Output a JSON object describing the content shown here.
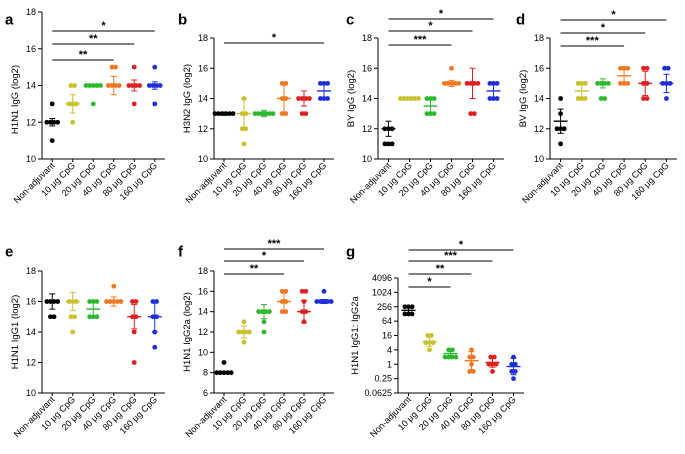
{
  "chart_data": [
    {
      "panel": "a",
      "type": "scatter",
      "ylabel": "H1N1 IgG (log2)",
      "yscale": "linear",
      "ylim": [
        10,
        18
      ],
      "yticks": [
        10,
        12,
        14,
        16,
        18
      ],
      "ytick_labels": [
        "10",
        "12",
        "14",
        "16",
        "18"
      ],
      "categories": [
        "Non-adjuvant",
        "10 μg CpG",
        "20 μg CpG",
        "40 μg CpG",
        "80 μg CpG",
        "160 μg CpG"
      ],
      "series": [
        {
          "name": "Non-adjuvant",
          "color": "#000000",
          "values": [
            12,
            12,
            12,
            12,
            11,
            13
          ],
          "mean": 12,
          "sd": 0.2
        },
        {
          "name": "10 μg CpG",
          "color": "#c9c12e",
          "values": [
            13,
            13,
            12,
            14,
            14,
            13
          ],
          "mean": 13,
          "sd": 0.5
        },
        {
          "name": "20 μg CpG",
          "color": "#2eb82e",
          "values": [
            14,
            14,
            14,
            14,
            13,
            14
          ],
          "mean": 14,
          "sd": 0.0
        },
        {
          "name": "40 μg CpG",
          "color": "#f07820",
          "values": [
            14,
            14,
            14,
            14,
            15,
            15
          ],
          "mean": 14,
          "sd": 0.5
        },
        {
          "name": "80 μg CpG",
          "color": "#e02020",
          "values": [
            14,
            14,
            15,
            14,
            14,
            13
          ],
          "mean": 14,
          "sd": 0.3
        },
        {
          "name": "160 μg CpG",
          "color": "#1f2fd8",
          "values": [
            14,
            14,
            14,
            14,
            15,
            13
          ],
          "mean": 14,
          "sd": 0.2
        }
      ],
      "significance": [
        {
          "from": 0,
          "to": 5,
          "label": "*"
        },
        {
          "from": 0,
          "to": 4,
          "label": "**"
        },
        {
          "from": 0,
          "to": 3,
          "label": "**"
        }
      ]
    },
    {
      "panel": "b",
      "type": "scatter",
      "ylabel": "H3N2 IgG (log2)",
      "yscale": "linear",
      "ylim": [
        10,
        18
      ],
      "yticks": [
        10,
        12,
        14,
        16,
        18
      ],
      "ytick_labels": [
        "10",
        "12",
        "14",
        "16",
        "18"
      ],
      "categories": [
        "Non-adjuvant",
        "10 μg CpG",
        "20 μg CpG",
        "40 μg CpG",
        "80 μg CpG",
        "160 μg CpG"
      ],
      "series": [
        {
          "name": "Non-adjuvant",
          "color": "#000000",
          "values": [
            13,
            13,
            13,
            13,
            13,
            13
          ],
          "mean": 13,
          "sd": 0.1
        },
        {
          "name": "10 μg CpG",
          "color": "#c9c12e",
          "values": [
            13,
            12,
            11,
            13,
            14,
            12
          ],
          "mean": 13,
          "sd": 1.0
        },
        {
          "name": "20 μg CpG",
          "color": "#2eb82e",
          "values": [
            13,
            13,
            13,
            13,
            13,
            13
          ],
          "mean": 13,
          "sd": 0.2
        },
        {
          "name": "40 μg CpG",
          "color": "#f07820",
          "values": [
            14,
            13,
            15,
            15,
            13,
            14
          ],
          "mean": 14,
          "sd": 1.0
        },
        {
          "name": "80 μg CpG",
          "color": "#e02020",
          "values": [
            14,
            14,
            13,
            14,
            13,
            14
          ],
          "mean": 14,
          "sd": 0.5
        },
        {
          "name": "160 μg CpG",
          "color": "#1f2fd8",
          "values": [
            14,
            15,
            15,
            14,
            15,
            14
          ],
          "mean": 14.5,
          "sd": 0.5
        }
      ],
      "significance": [
        {
          "from": 0,
          "to": 5,
          "label": "*"
        }
      ]
    },
    {
      "panel": "c",
      "type": "scatter",
      "ylabel": "BY IgG (log2)",
      "yscale": "linear",
      "ylim": [
        10,
        18
      ],
      "yticks": [
        10,
        12,
        14,
        16,
        18
      ],
      "ytick_labels": [
        "10",
        "12",
        "14",
        "16",
        "18"
      ],
      "categories": [
        "Non-adjuvant",
        "10 μg CpG",
        "20 μg CpG",
        "40 μg CpG",
        "80 μg CpG",
        "160 μg CpG"
      ],
      "series": [
        {
          "name": "Non-adjuvant",
          "color": "#000000",
          "values": [
            12,
            12,
            11,
            11,
            12,
            11
          ],
          "mean": 12,
          "sd": 0.5
        },
        {
          "name": "10 μg CpG",
          "color": "#c9c12e",
          "values": [
            14,
            14,
            14,
            14,
            14,
            14
          ],
          "mean": 14,
          "sd": 0.0
        },
        {
          "name": "20 μg CpG",
          "color": "#2eb82e",
          "values": [
            14,
            13,
            14,
            13,
            13,
            14
          ],
          "mean": 13.5,
          "sd": 0.5
        },
        {
          "name": "40 μg CpG",
          "color": "#f07820",
          "values": [
            16,
            15,
            15,
            15,
            15,
            15
          ],
          "mean": 15,
          "sd": 0.2
        },
        {
          "name": "80 μg CpG",
          "color": "#e02020",
          "values": [
            15,
            15,
            13,
            13,
            15,
            15
          ],
          "mean": 15,
          "sd": 1.0
        },
        {
          "name": "160 μg CpG",
          "color": "#1f2fd8",
          "values": [
            15,
            15,
            14,
            14,
            15,
            14
          ],
          "mean": 14.5,
          "sd": 0.5
        }
      ],
      "significance": [
        {
          "from": 0,
          "to": 5,
          "label": "*"
        },
        {
          "from": 0,
          "to": 4,
          "label": "*"
        },
        {
          "from": 0,
          "to": 3,
          "label": "***"
        }
      ]
    },
    {
      "panel": "d",
      "type": "scatter",
      "ylabel": "BV IgG (log2)",
      "yscale": "linear",
      "ylim": [
        10,
        18
      ],
      "yticks": [
        10,
        12,
        14,
        16,
        18
      ],
      "ytick_labels": [
        "10",
        "12",
        "14",
        "16",
        "18"
      ],
      "categories": [
        "Non-adjuvant",
        "10 μg CpG",
        "20 μg CpG",
        "40 μg CpG",
        "80 μg CpG",
        "160 μg CpG"
      ],
      "series": [
        {
          "name": "Non-adjuvant",
          "color": "#000000",
          "values": [
            14,
            13,
            12,
            12,
            11,
            12
          ],
          "mean": 12.5,
          "sd": 0.8
        },
        {
          "name": "10 μg CpG",
          "color": "#c9c12e",
          "values": [
            15,
            15,
            14,
            14,
            15,
            14
          ],
          "mean": 14.5,
          "sd": 0.5
        },
        {
          "name": "20 μg CpG",
          "color": "#2eb82e",
          "values": [
            15,
            15,
            15,
            15,
            14,
            14
          ],
          "mean": 15,
          "sd": 0.3
        },
        {
          "name": "40 μg CpG",
          "color": "#f07820",
          "values": [
            16,
            16,
            16,
            15,
            15,
            15
          ],
          "mean": 15.5,
          "sd": 0.5
        },
        {
          "name": "80 μg CpG",
          "color": "#e02020",
          "values": [
            16,
            16,
            15,
            15,
            14,
            14
          ],
          "mean": 15,
          "sd": 0.8
        },
        {
          "name": "160 μg CpG",
          "color": "#1f2fd8",
          "values": [
            16,
            16,
            15,
            15,
            15,
            14
          ],
          "mean": 15,
          "sd": 0.6
        }
      ],
      "significance": [
        {
          "from": 0,
          "to": 5,
          "label": "*"
        },
        {
          "from": 0,
          "to": 4,
          "label": "*"
        },
        {
          "from": 0,
          "to": 3,
          "label": "***"
        }
      ]
    },
    {
      "panel": "e",
      "type": "scatter",
      "ylabel": "H1N1 IgG1 (log2)",
      "yscale": "linear",
      "ylim": [
        10,
        18
      ],
      "yticks": [
        10,
        12,
        14,
        16,
        18
      ],
      "ytick_labels": [
        "10",
        "12",
        "14",
        "16",
        "18"
      ],
      "categories": [
        "Non-adjuvant",
        "10 μg CpG",
        "20 μg CpG",
        "40 μg CpG",
        "80 μg CpG",
        "160 μg CpG"
      ],
      "series": [
        {
          "name": "Non-adjuvant",
          "color": "#000000",
          "values": [
            16,
            16,
            16,
            16,
            15,
            15
          ],
          "mean": 16,
          "sd": 0.5
        },
        {
          "name": "10 μg CpG",
          "color": "#c9c12e",
          "values": [
            16,
            16,
            16,
            15,
            15,
            14
          ],
          "mean": 16,
          "sd": 0.6
        },
        {
          "name": "20 μg CpG",
          "color": "#2eb82e",
          "values": [
            16,
            16,
            16,
            15,
            15,
            15
          ],
          "mean": 15.5,
          "sd": 0.5
        },
        {
          "name": "40 μg CpG",
          "color": "#f07820",
          "values": [
            17,
            16,
            16,
            16,
            16,
            16
          ],
          "mean": 16,
          "sd": 0.3
        },
        {
          "name": "80 μg CpG",
          "color": "#e02020",
          "values": [
            16,
            16,
            15,
            15,
            14,
            12
          ],
          "mean": 15,
          "sd": 0.8
        },
        {
          "name": "160 μg CpG",
          "color": "#1f2fd8",
          "values": [
            16,
            16,
            15,
            15,
            14,
            13
          ],
          "mean": 15,
          "sd": 1.0
        }
      ],
      "significance": []
    },
    {
      "panel": "f",
      "type": "scatter",
      "ylabel": "H1N1 IgG2a (log2)",
      "yscale": "linear",
      "ylim": [
        6,
        18
      ],
      "yticks": [
        6,
        8,
        10,
        12,
        14,
        16,
        18
      ],
      "ytick_labels": [
        "6",
        "8",
        "10",
        "12",
        "14",
        "16",
        "18"
      ],
      "categories": [
        "Non-adjuvant",
        "10 μg CpG",
        "20 μg CpG",
        "40 μg CpG",
        "80 μg CpG",
        "160 μg CpG"
      ],
      "series": [
        {
          "name": "Non-adjuvant",
          "color": "#000000",
          "values": [
            9,
            8,
            8,
            8,
            8,
            8
          ],
          "mean": 8,
          "sd": 0.1
        },
        {
          "name": "10 μg CpG",
          "color": "#c9c12e",
          "values": [
            13,
            12,
            12,
            12,
            12,
            11
          ],
          "mean": 12,
          "sd": 0.6
        },
        {
          "name": "20 μg CpG",
          "color": "#2eb82e",
          "values": [
            14,
            14,
            14,
            14,
            13,
            12
          ],
          "mean": 14,
          "sd": 0.7
        },
        {
          "name": "40 μg CpG",
          "color": "#f07820",
          "values": [
            16,
            16,
            15,
            15,
            14,
            14
          ],
          "mean": 15,
          "sd": 0.9
        },
        {
          "name": "80 μg CpG",
          "color": "#e02020",
          "values": [
            16,
            16,
            15,
            14,
            14,
            13
          ],
          "mean": 14,
          "sd": 1.1
        },
        {
          "name": "160 μg CpG",
          "color": "#1f2fd8",
          "values": [
            16,
            15,
            15,
            15,
            15,
            15
          ],
          "mean": 15,
          "sd": 0.2
        }
      ],
      "significance": [
        {
          "from": 0,
          "to": 5,
          "label": "***"
        },
        {
          "from": 0,
          "to": 4,
          "label": "*"
        },
        {
          "from": 0,
          "to": 3,
          "label": "**"
        }
      ]
    },
    {
      "panel": "g",
      "type": "scatter",
      "ylabel": "H1N1 IgG1: IgG2a",
      "yscale": "log2",
      "ylim": [
        0.0625,
        4096
      ],
      "yticks": [
        0.0625,
        0.25,
        1,
        4,
        16,
        64,
        256,
        1024,
        4096
      ],
      "ytick_labels": [
        "0.0625",
        "0.25",
        "1",
        "4",
        "16",
        "64",
        "256",
        "1024",
        "4096"
      ],
      "categories": [
        "Non-adjuvant",
        "10 μg CpG",
        "20 μg CpG",
        "40 μg CpG",
        "80 μg CpG",
        "160 μg CpG"
      ],
      "series": [
        {
          "name": "Non-adjuvant",
          "color": "#000000",
          "values": [
            256,
            256,
            256,
            128,
            128,
            128
          ],
          "mean": 181,
          "sd_factor": 1.3
        },
        {
          "name": "10 μg CpG",
          "color": "#c9c12e",
          "values": [
            16,
            16,
            8,
            8,
            8,
            4
          ],
          "mean": 9,
          "sd_factor": 1.6
        },
        {
          "name": "20 μg CpG",
          "color": "#2eb82e",
          "values": [
            4,
            4,
            2,
            2,
            2,
            2
          ],
          "mean": 2.8,
          "sd_factor": 1.5
        },
        {
          "name": "40 μg CpG",
          "color": "#f07820",
          "values": [
            4,
            2,
            2,
            1,
            0.5,
            0.5
          ],
          "mean": 1.4,
          "sd_factor": 2.4
        },
        {
          "name": "80 μg CpG",
          "color": "#e02020",
          "values": [
            2,
            2,
            1,
            1,
            1,
            0.5
          ],
          "mean": 1.2,
          "sd_factor": 1.6
        },
        {
          "name": "160 μg CpG",
          "color": "#1f2fd8",
          "values": [
            2,
            1,
            1,
            0.5,
            0.5,
            0.25
          ],
          "mean": 0.8,
          "sd_factor": 2.2
        }
      ],
      "significance": [
        {
          "from": 0,
          "to": 5,
          "label": "*"
        },
        {
          "from": 0,
          "to": 4,
          "label": "***"
        },
        {
          "from": 0,
          "to": 3,
          "label": "**"
        },
        {
          "from": 0,
          "to": 2,
          "label": "*"
        }
      ]
    }
  ]
}
